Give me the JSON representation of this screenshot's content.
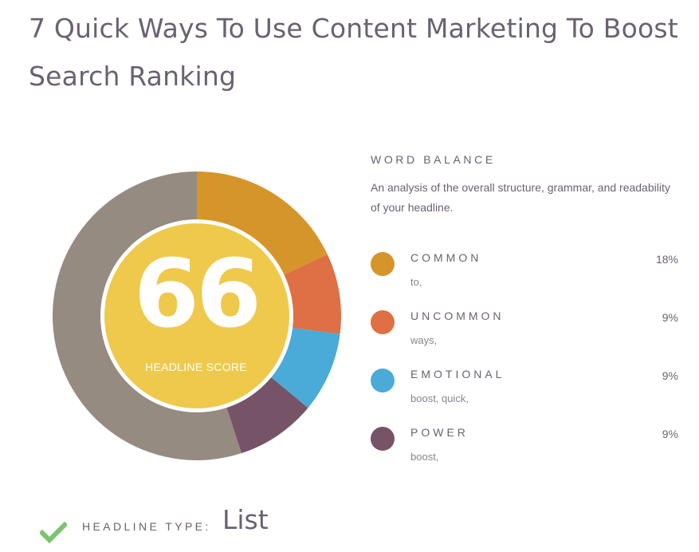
{
  "headline": "7 Quick Ways To Use Content Marketing To Boost Search Ranking",
  "score": {
    "value": "66",
    "label": "HEADLINE SCORE",
    "colors": {
      "inner": "#efc94c",
      "other": "#958b81"
    }
  },
  "word_balance": {
    "title": "WORD BALANCE",
    "description": "An analysis of the overall structure, grammar, and readability of your headline.",
    "categories": [
      {
        "name": "COMMON",
        "percent_label": "18%",
        "percent": 18,
        "words": "to,",
        "color": "#d5952b"
      },
      {
        "name": "UNCOMMON",
        "percent_label": "9%",
        "percent": 9,
        "words": "ways,",
        "color": "#df6f44"
      },
      {
        "name": "EMOTIONAL",
        "percent_label": "9%",
        "percent": 9,
        "words": "boost, quick,",
        "color": "#4aabd8"
      },
      {
        "name": "POWER",
        "percent_label": "9%",
        "percent": 9,
        "words": "boost,",
        "color": "#775367"
      }
    ]
  },
  "headline_type": {
    "label": "HEADLINE TYPE:",
    "value": "List",
    "check_color": "#7dc36f"
  }
}
